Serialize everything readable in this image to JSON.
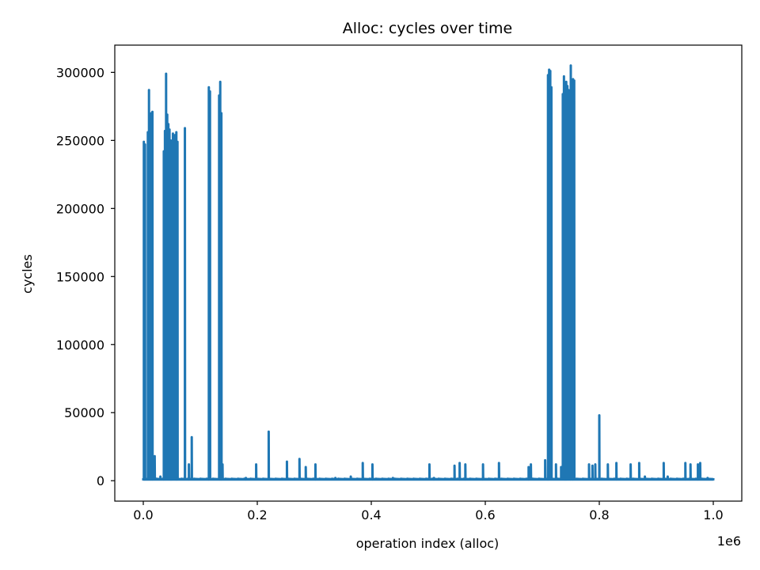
{
  "chart_data": {
    "type": "line",
    "title": "Alloc: cycles over time",
    "xlabel": "operation index (alloc)",
    "ylabel": "cycles",
    "x_offset_label": "1e6",
    "xlim": [
      -0.05,
      1.05
    ],
    "ylim": [
      -15000,
      320000
    ],
    "x_ticks": [
      0.0,
      0.2,
      0.4,
      0.6,
      0.8,
      1.0
    ],
    "x_tick_labels": [
      "0.0",
      "0.2",
      "0.4",
      "0.6",
      "0.8",
      "1.0"
    ],
    "y_ticks": [
      0,
      50000,
      100000,
      150000,
      200000,
      250000,
      300000
    ],
    "y_tick_labels": [
      "0",
      "50000",
      "100000",
      "150000",
      "200000",
      "250000",
      "300000"
    ],
    "grid": false,
    "color": "#1f77b4",
    "series": [
      {
        "name": "",
        "baseline": [
          0.0,
          1.0,
          1000
        ],
        "spikes": [
          [
            0.001,
            249000
          ],
          [
            0.003,
            247000
          ],
          [
            0.008,
            256000
          ],
          [
            0.01,
            287000
          ],
          [
            0.012,
            257000
          ],
          [
            0.014,
            270000
          ],
          [
            0.016,
            271000
          ],
          [
            0.02,
            18000
          ],
          [
            0.03,
            3000
          ],
          [
            0.036,
            242000
          ],
          [
            0.038,
            257000
          ],
          [
            0.04,
            299000
          ],
          [
            0.042,
            269000
          ],
          [
            0.044,
            262000
          ],
          [
            0.046,
            258000
          ],
          [
            0.048,
            250000
          ],
          [
            0.05,
            248000
          ],
          [
            0.052,
            255000
          ],
          [
            0.054,
            253000
          ],
          [
            0.056,
            254000
          ],
          [
            0.058,
            256000
          ],
          [
            0.06,
            249000
          ],
          [
            0.073,
            259000
          ],
          [
            0.08,
            12000
          ],
          [
            0.085,
            32000
          ],
          [
            0.115,
            289000
          ],
          [
            0.117,
            286000
          ],
          [
            0.133,
            283000
          ],
          [
            0.135,
            293000
          ],
          [
            0.137,
            270000
          ],
          [
            0.139,
            12000
          ],
          [
            0.18,
            2000
          ],
          [
            0.198,
            12000
          ],
          [
            0.22,
            36000
          ],
          [
            0.252,
            14000
          ],
          [
            0.274,
            16000
          ],
          [
            0.285,
            10000
          ],
          [
            0.302,
            12000
          ],
          [
            0.337,
            2000
          ],
          [
            0.364,
            3000
          ],
          [
            0.385,
            13000
          ],
          [
            0.402,
            12000
          ],
          [
            0.438,
            2000
          ],
          [
            0.502,
            12000
          ],
          [
            0.51,
            2000
          ],
          [
            0.546,
            11000
          ],
          [
            0.555,
            13000
          ],
          [
            0.565,
            12000
          ],
          [
            0.596,
            12000
          ],
          [
            0.624,
            13000
          ],
          [
            0.676,
            10000
          ],
          [
            0.68,
            12000
          ],
          [
            0.705,
            15000
          ],
          [
            0.71,
            298000
          ],
          [
            0.712,
            302000
          ],
          [
            0.714,
            301000
          ],
          [
            0.716,
            289000
          ],
          [
            0.724,
            12000
          ],
          [
            0.733,
            10000
          ],
          [
            0.736,
            284000
          ],
          [
            0.738,
            297000
          ],
          [
            0.74,
            289000
          ],
          [
            0.742,
            293000
          ],
          [
            0.744,
            290000
          ],
          [
            0.746,
            287000
          ],
          [
            0.748,
            285000
          ],
          [
            0.75,
            305000
          ],
          [
            0.754,
            295000
          ],
          [
            0.756,
            294000
          ],
          [
            0.782,
            12000
          ],
          [
            0.788,
            11000
          ],
          [
            0.793,
            12000
          ],
          [
            0.8,
            48000
          ],
          [
            0.815,
            12000
          ],
          [
            0.83,
            13000
          ],
          [
            0.855,
            12000
          ],
          [
            0.87,
            13000
          ],
          [
            0.88,
            3000
          ],
          [
            0.913,
            13000
          ],
          [
            0.92,
            3000
          ],
          [
            0.951,
            13000
          ],
          [
            0.96,
            12000
          ],
          [
            0.973,
            12000
          ],
          [
            0.977,
            13000
          ],
          [
            0.99,
            2000
          ]
        ]
      }
    ]
  }
}
